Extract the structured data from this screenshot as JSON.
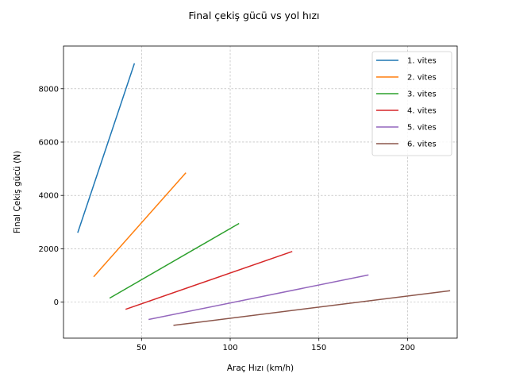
{
  "chart_data": {
    "type": "line",
    "title": "Final çekiş gücü vs yol hızı",
    "xlabel": "Araç Hızı (km/h)",
    "ylabel": "Final Çekiş gücü (N)",
    "xlim": [
      6,
      228
    ],
    "ylim": [
      -1350,
      9600
    ],
    "xticks": [
      50,
      100,
      150,
      200
    ],
    "yticks": [
      0,
      2000,
      4000,
      6000,
      8000
    ],
    "grid": true,
    "legend_position": "top-right",
    "series": [
      {
        "name": "1. vites",
        "color": "#1f77b4",
        "x": [
          14,
          46
        ],
        "y": [
          2600,
          8950
        ]
      },
      {
        "name": "2. vites",
        "color": "#ff7f0e",
        "x": [
          23,
          75
        ],
        "y": [
          950,
          4850
        ]
      },
      {
        "name": "3. vites",
        "color": "#2ca02c",
        "x": [
          32,
          105
        ],
        "y": [
          150,
          2950
        ]
      },
      {
        "name": "4. vites",
        "color": "#d62728",
        "x": [
          41,
          135
        ],
        "y": [
          -270,
          1900
        ]
      },
      {
        "name": "5. vites",
        "color": "#9467bd",
        "x": [
          54,
          178
        ],
        "y": [
          -650,
          1020
        ]
      },
      {
        "name": "6. vites",
        "color": "#8c564b",
        "x": [
          68,
          224
        ],
        "y": [
          -870,
          430
        ]
      }
    ]
  }
}
